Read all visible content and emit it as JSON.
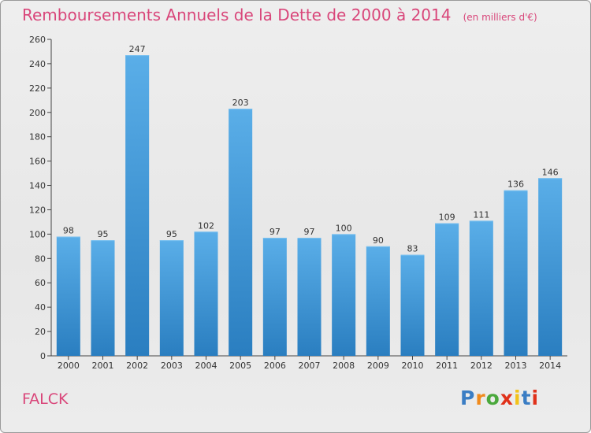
{
  "title": "Remboursements Annuels de la Dette de 2000 à 2014",
  "title_unit": "(en milliers d'€)",
  "commune": "FALCK",
  "logo": {
    "text": "Proxiti",
    "letter_colors": [
      "#3a7dc4",
      "#f08a1c",
      "#4aa83c",
      "#e0311a",
      "#f2c21a",
      "#3a7dc4",
      "#e0311a"
    ]
  },
  "colors": {
    "bar_top": "#5aaee8",
    "bar_bottom": "#2a7ec0",
    "title": "#d9467a"
  },
  "chart_data": {
    "type": "bar",
    "title": "Remboursements Annuels de la Dette de 2000 à 2014",
    "xlabel": "",
    "ylabel": "",
    "categories": [
      "2000",
      "2001",
      "2002",
      "2003",
      "2004",
      "2005",
      "2006",
      "2007",
      "2008",
      "2009",
      "2010",
      "2011",
      "2012",
      "2013",
      "2014"
    ],
    "values": [
      98,
      95,
      247,
      95,
      102,
      203,
      97,
      97,
      100,
      90,
      83,
      109,
      111,
      136,
      146
    ],
    "ylim": [
      0,
      260
    ],
    "yticks": [
      0,
      20,
      40,
      60,
      80,
      100,
      120,
      140,
      160,
      180,
      200,
      220,
      240,
      260
    ],
    "grid": false,
    "data_labels": true
  }
}
